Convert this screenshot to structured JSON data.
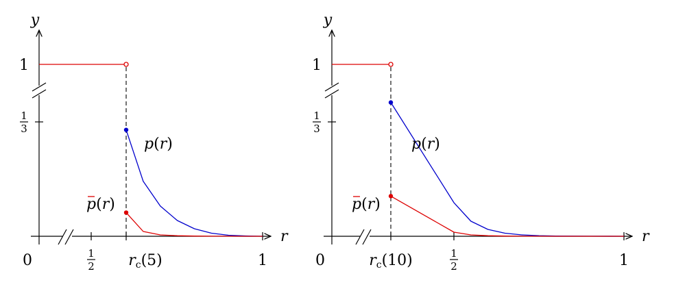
{
  "colors": {
    "p": "#0000cc",
    "pbar": "#dd0000",
    "axis": "#000000"
  },
  "chart_data": [
    {
      "type": "line",
      "xlabel": "r",
      "ylabel": "y",
      "x_ticks": [
        {
          "label": "0",
          "value": 0
        },
        {
          "label_num": "1",
          "label_den": "2",
          "value": 0.5
        },
        {
          "label": "r_c(5)",
          "value": 0.6
        },
        {
          "label": "1",
          "value": 1.0
        }
      ],
      "y_ticks": [
        {
          "label_num": "1",
          "label_den": "3",
          "value": 0.3333
        },
        {
          "label": "1",
          "value": 1.0
        }
      ],
      "axis_breaks": [
        "x between 0 and 1/2",
        "y between 1/3 and 1"
      ],
      "r_c": 0.6,
      "series": [
        {
          "name": "p(r)",
          "label_main": "p",
          "label_bar": false,
          "color": "#0000cc",
          "segments": [
            {
              "x": [
                0.6,
                0.65,
                0.7,
                0.75,
                0.8,
                0.85,
                0.9,
                0.95,
                1.0
              ],
              "y": [
                0.31,
                0.16,
                0.088,
                0.046,
                0.022,
                0.009,
                0.003,
                0.001,
                0.0
              ]
            }
          ],
          "filled_points": [
            {
              "x": 0.6,
              "y": 0.31
            }
          ]
        },
        {
          "name": "p̄(r)",
          "label_main": "p",
          "label_bar": true,
          "color": "#dd0000",
          "segments": [
            {
              "x": [
                0.0,
                0.6
              ],
              "y": [
                1.0,
                1.0
              ]
            },
            {
              "x": [
                0.6,
                0.65,
                0.7,
                0.75,
                0.8,
                0.85,
                0.9,
                0.95,
                1.0
              ],
              "y": [
                0.069,
                0.014,
                0.004,
                0.0015,
                0.0005,
                0.0002,
                0.0001,
                0.0,
                0.0
              ]
            }
          ],
          "open_points": [
            {
              "x": 0.6,
              "y": 1.0
            }
          ],
          "filled_points": [
            {
              "x": 0.6,
              "y": 0.069
            }
          ]
        }
      ]
    },
    {
      "type": "line",
      "xlabel": "r",
      "ylabel": "y",
      "x_ticks": [
        {
          "label": "0",
          "value": 0
        },
        {
          "label": "r_c(10)",
          "value": 0.45
        },
        {
          "label_num": "1",
          "label_den": "2",
          "value": 0.5
        },
        {
          "label": "1",
          "value": 1.0
        }
      ],
      "y_ticks": [
        {
          "label_num": "1",
          "label_den": "3",
          "value": 0.3333
        },
        {
          "label": "1",
          "value": 1.0
        }
      ],
      "axis_breaks": [
        "x between 0 and r_c(10)",
        "y between 1/3 and 1"
      ],
      "r_c": 0.45,
      "series": [
        {
          "name": "p(r)",
          "label_main": "p",
          "label_bar": false,
          "color": "#0000cc",
          "segments": [
            {
              "x": [
                0.45,
                0.5,
                0.55,
                0.6,
                0.65,
                0.7,
                0.75,
                0.8,
                0.85,
                0.9,
                1.0
              ],
              "y": [
                0.39,
                0.098,
                0.044,
                0.02,
                0.009,
                0.004,
                0.0018,
                0.0008,
                0.0003,
                0.0001,
                0.0
              ]
            }
          ],
          "filled_points": [
            {
              "x": 0.45,
              "y": 0.39
            }
          ]
        },
        {
          "name": "p̄(r)",
          "label_main": "p",
          "label_bar": true,
          "color": "#dd0000",
          "segments": [
            {
              "x": [
                0.0,
                0.45
              ],
              "y": [
                1.0,
                1.0
              ]
            },
            {
              "x": [
                0.45,
                0.5,
                0.55,
                0.6,
                0.65,
                0.7,
                0.75,
                0.8,
                1.0
              ],
              "y": [
                0.117,
                0.012,
                0.004,
                0.0015,
                0.0005,
                0.0002,
                0.0001,
                0.0,
                0.0
              ]
            }
          ],
          "open_points": [
            {
              "x": 0.45,
              "y": 1.0
            }
          ],
          "filled_points": [
            {
              "x": 0.45,
              "y": 0.117
            }
          ]
        }
      ]
    }
  ]
}
